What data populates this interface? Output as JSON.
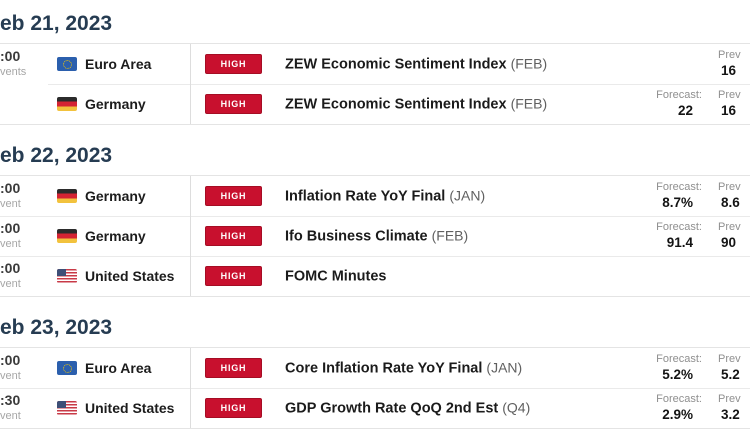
{
  "theme": {
    "badge_red": "#c8102e",
    "date_color": "#263c52",
    "flag_colors": {
      "eu_blue": "#2b5fad",
      "de_red": "#d42333",
      "us_canton_blue": "#3d4f77"
    }
  },
  "days": [
    {
      "date": "eb 21, 2023",
      "rows": [
        {
          "time": ":00",
          "events": "vents",
          "flag": "eu",
          "country": "Euro Area",
          "importance": "HIGH",
          "event": "ZEW Economic Sentiment Index",
          "period": "(FEB)",
          "forecast_label": "",
          "forecast_value": "",
          "prev_label": "Prev",
          "prev_value": "16"
        },
        {
          "time": "",
          "events": "",
          "flag": "de",
          "country": "Germany",
          "importance": "HIGH",
          "event": "ZEW Economic Sentiment Index",
          "period": "(FEB)",
          "forecast_label": "Forecast:",
          "forecast_value": "22",
          "prev_label": "Prev",
          "prev_value": "16"
        }
      ]
    },
    {
      "date": "eb 22, 2023",
      "rows": [
        {
          "time": ":00",
          "events": "vent",
          "flag": "de",
          "country": "Germany",
          "importance": "HIGH",
          "event": "Inflation Rate YoY Final",
          "period": "(JAN)",
          "forecast_label": "Forecast:",
          "forecast_value": "8.7%",
          "prev_label": "Prev",
          "prev_value": "8.6"
        },
        {
          "time": ":00",
          "events": "vent",
          "flag": "de",
          "country": "Germany",
          "importance": "HIGH",
          "event": "Ifo Business Climate",
          "period": "(FEB)",
          "forecast_label": "Forecast:",
          "forecast_value": "91.4",
          "prev_label": "Prev",
          "prev_value": "90"
        },
        {
          "time": ":00",
          "events": "vent",
          "flag": "us",
          "country": "United States",
          "importance": "HIGH",
          "event": "FOMC Minutes",
          "period": "",
          "forecast_label": "",
          "forecast_value": "",
          "prev_label": "",
          "prev_value": ""
        }
      ]
    },
    {
      "date": "eb 23, 2023",
      "rows": [
        {
          "time": ":00",
          "events": "vent",
          "flag": "eu",
          "country": "Euro Area",
          "importance": "HIGH",
          "event": "Core Inflation Rate YoY Final",
          "period": "(JAN)",
          "forecast_label": "Forecast:",
          "forecast_value": "5.2%",
          "prev_label": "Prev",
          "prev_value": "5.2"
        },
        {
          "time": ":30",
          "events": "vent",
          "flag": "us",
          "country": "United States",
          "importance": "HIGH",
          "event": "GDP Growth Rate QoQ 2nd Est",
          "period": "(Q4)",
          "forecast_label": "Forecast:",
          "forecast_value": "2.9%",
          "prev_label": "Prev",
          "prev_value": "3.2"
        }
      ]
    }
  ]
}
